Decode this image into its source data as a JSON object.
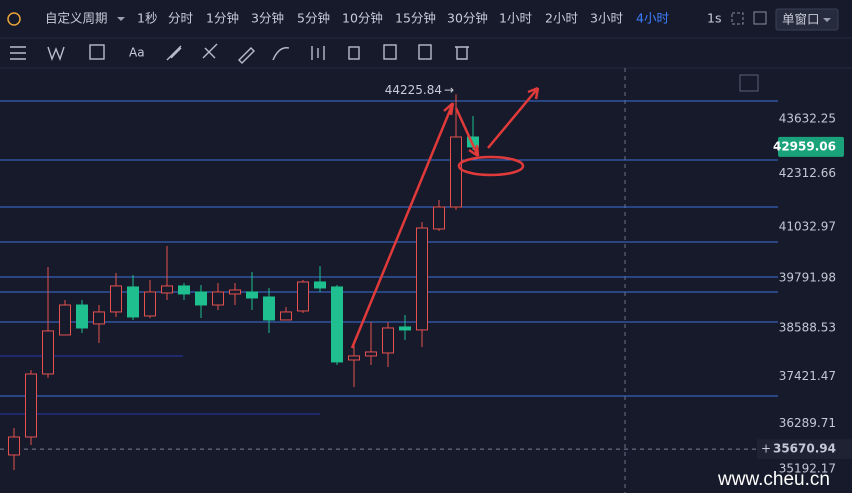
{
  "toolbar": {
    "period_label": "自定义周期",
    "intervals": [
      "1秒",
      "分时",
      "1分钟",
      "3分钟",
      "5分钟",
      "10分钟",
      "15分钟",
      "30分钟",
      "1小时",
      "2小时",
      "3小时",
      "4小时"
    ],
    "speed": "1s",
    "window": "单窗口",
    "text_tool": "Aa"
  },
  "chart_data": {
    "type": "candlestick",
    "open": [
      35530,
      35964,
      37483,
      38424,
      39147,
      38690,
      38979,
      39582,
      38882,
      39437,
      39606,
      39461,
      39147,
      39413,
      39461,
      39340,
      38786,
      39003,
      39702,
      39582,
      37821,
      37918,
      37990,
      38617,
      38545,
      40980,
      41510,
      43198
    ],
    "close": [
      35964,
      37483,
      38521,
      39147,
      38593,
      38979,
      39606,
      38858,
      39461,
      39606,
      39413,
      39147,
      39461,
      39509,
      39316,
      38786,
      38979,
      39702,
      39557,
      37773,
      37918,
      38014,
      38593,
      38545,
      41004,
      41510,
      43198,
      42959.06
    ],
    "high": [
      36181,
      37580,
      40064,
      39268,
      39268,
      39147,
      39919,
      39871,
      39750,
      40570,
      39678,
      39630,
      39678,
      39678,
      39943,
      39557,
      39099,
      39750,
      40088,
      39630,
      38255,
      38738,
      38738,
      38907,
      41149,
      41679,
      44225.84,
      43705
    ],
    "low": [
      35168,
      35771,
      37387,
      38424,
      38472,
      38231,
      38858,
      38786,
      38834,
      39268,
      39268,
      38834,
      39027,
      39147,
      39027,
      38472,
      38786,
      38955,
      39461,
      37701,
      37170,
      37701,
      37652,
      38303,
      38135,
      40932,
      41438,
      42885
    ],
    "up_color": "#e5514f",
    "down_color": "#1fbf8f",
    "ylim": [
      34613,
      44862
    ],
    "yticks": [
      43632.25,
      42312.66,
      41032.97,
      39791.98,
      38588.53,
      37421.47,
      36289.71,
      35192.17
    ],
    "grid": false,
    "levels": [
      44066,
      42644,
      41510,
      40666,
      39822,
      39460,
      38737,
      36953
    ],
    "level_color": "#3f73d9",
    "short_levels": [
      37918,
      36519
    ],
    "short_level_color": "#2636a8",
    "crosshair": 35670.94
  },
  "watermark": "www.cheu.cn"
}
